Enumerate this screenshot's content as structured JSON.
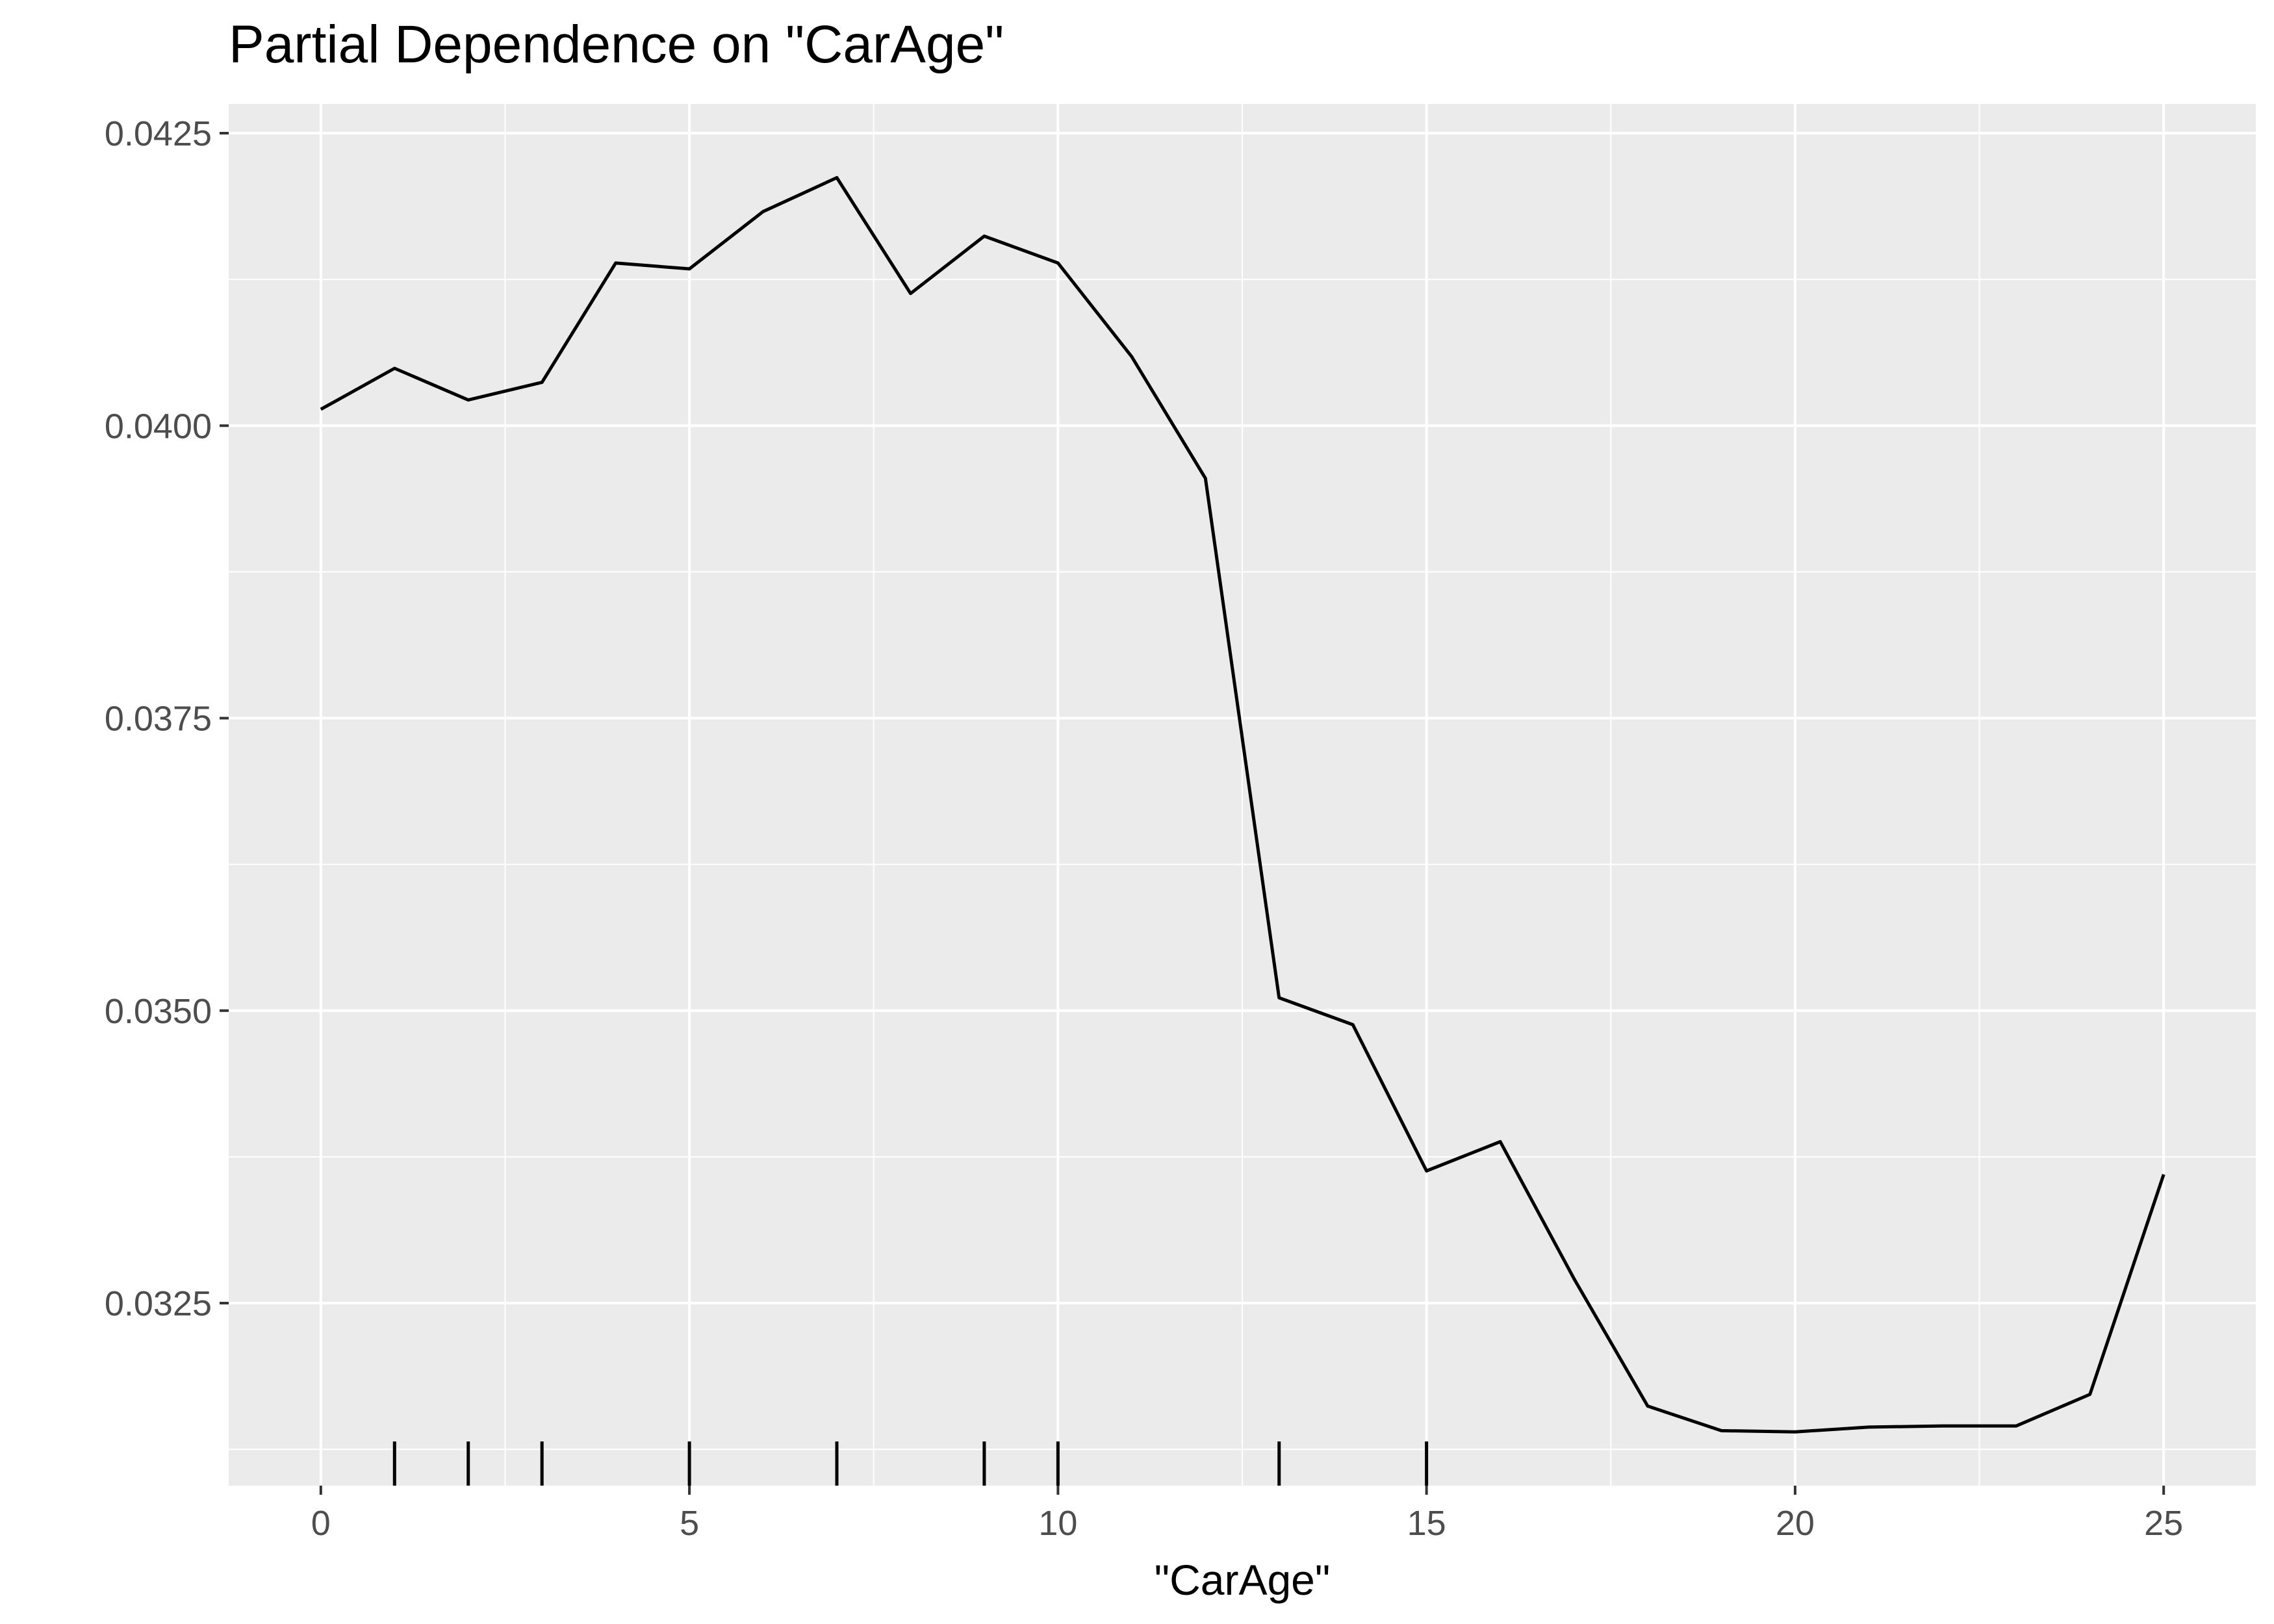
{
  "chart_data": {
    "type": "line",
    "title": "Partial Dependence on \"CarAge\"",
    "xlabel": "\"CarAge\"",
    "ylabel": "",
    "xlim": [
      -1.25,
      26.25
    ],
    "ylim": [
      0.03094,
      0.04275
    ],
    "x_ticks": [
      0,
      5,
      10,
      15,
      20,
      25
    ],
    "x_tick_labels": [
      "0",
      "5",
      "10",
      "15",
      "20",
      "25"
    ],
    "y_ticks": [
      0.0325,
      0.035,
      0.0375,
      0.04,
      0.0425
    ],
    "y_tick_labels": [
      "0.0325",
      "0.0350",
      "0.0375",
      "0.0400",
      "0.0425"
    ],
    "grid": true,
    "background": "#ebebeb",
    "line_color": "#000000",
    "series": [
      {
        "x": [
          0,
          1,
          2,
          3,
          4,
          5,
          6,
          7,
          8,
          9,
          10,
          11,
          12,
          13,
          14,
          15,
          16,
          17,
          18,
          19,
          20,
          21,
          22,
          23,
          24,
          25
        ],
        "y": [
          0.04014,
          0.04049,
          0.04022,
          0.04037,
          0.04139,
          0.04134,
          0.04183,
          0.04212,
          0.04113,
          0.04162,
          0.04139,
          0.04059,
          0.03955,
          0.03511,
          0.03488,
          0.03363,
          0.03388,
          0.03271,
          0.03162,
          0.03141,
          0.0314,
          0.03144,
          0.03145,
          0.03145,
          0.03172,
          0.0336
        ]
      }
    ],
    "rug_x": [
      1,
      2,
      3,
      5,
      7,
      9,
      10,
      13,
      15
    ]
  }
}
